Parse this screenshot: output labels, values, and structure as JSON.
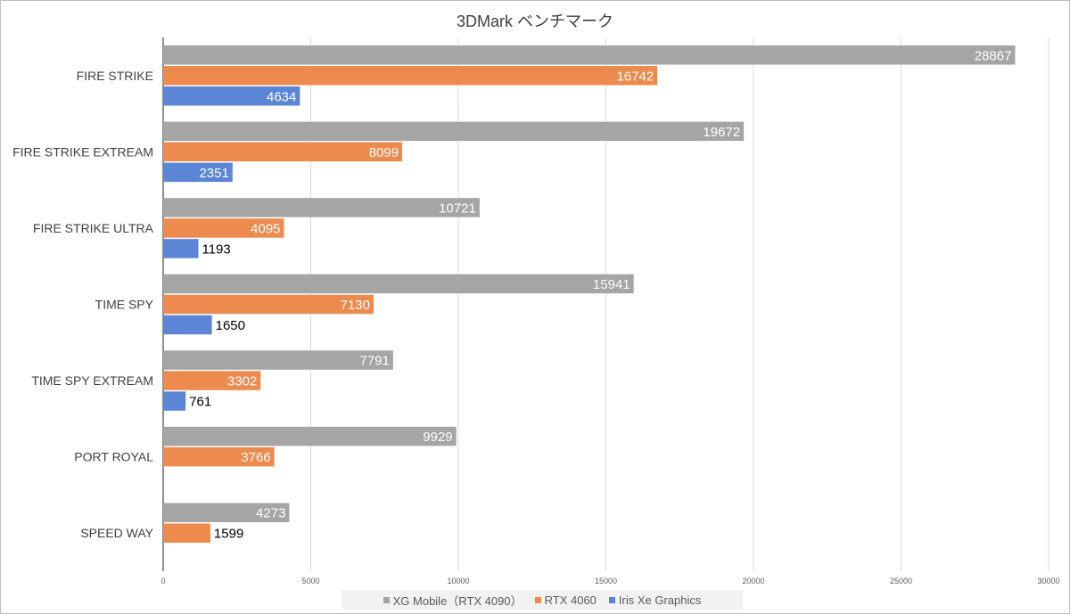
{
  "chart_data": {
    "type": "bar",
    "orientation": "horizontal",
    "title": "3DMark ベンチマーク",
    "categories": [
      "FIRE STRIKE",
      "FIRE STRIKE EXTREAM",
      "FIRE STRIKE ULTRA",
      "TIME SPY",
      "TIME SPY EXTREAM",
      "PORT ROYAL",
      "SPEED WAY"
    ],
    "series": [
      {
        "name": "XG Mobile（RTX 4090）",
        "color": "#a5a5a5",
        "values": [
          28867,
          19672,
          10721,
          15941,
          7791,
          9929,
          4273
        ]
      },
      {
        "name": "RTX 4060",
        "color": "#ed8b4f",
        "values": [
          16742,
          8099,
          4095,
          7130,
          3302,
          3766,
          1599
        ]
      },
      {
        "name": "Iris Xe Graphics",
        "color": "#5b86d6",
        "values": [
          4634,
          2351,
          1193,
          1650,
          761,
          null,
          null
        ]
      }
    ],
    "xlim": [
      0,
      30000
    ],
    "xticks": [
      "0",
      "5000",
      "10000",
      "15000",
      "20000",
      "25000",
      "30000"
    ],
    "grid": "vertical",
    "legend_position": "bottom"
  }
}
